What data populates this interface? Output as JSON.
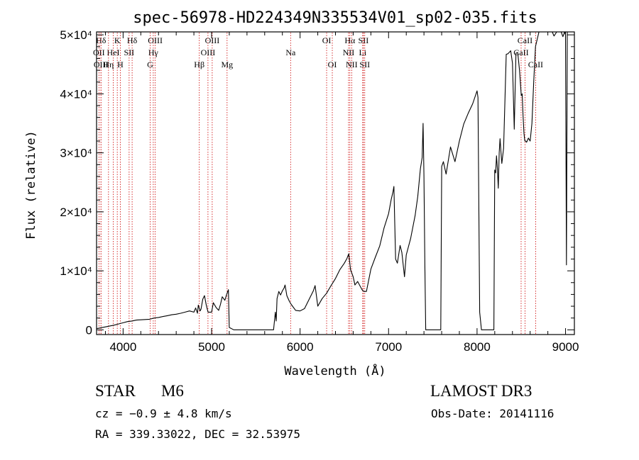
{
  "chart_data": {
    "type": "line",
    "title": "spec-56978-HD224349N335534V01_sp02-035.fits",
    "xlabel": "Wavelength (Å)",
    "ylabel": "Flux (relative)",
    "xlim": [
      3700,
      9100
    ],
    "ylim": [
      -800,
      50500
    ],
    "xticks": [
      {
        "value": 4000,
        "label": "4000"
      },
      {
        "value": 5000,
        "label": "5000"
      },
      {
        "value": 6000,
        "label": "6000"
      },
      {
        "value": 7000,
        "label": "7000"
      },
      {
        "value": 8000,
        "label": "8000"
      },
      {
        "value": 9000,
        "label": "9000"
      }
    ],
    "yticks": [
      {
        "value": 0,
        "label": "0"
      },
      {
        "value": 10000,
        "label": "1×10⁴"
      },
      {
        "value": 20000,
        "label": "2×10⁴"
      },
      {
        "value": 30000,
        "label": "3×10⁴"
      },
      {
        "value": 40000,
        "label": "4×10⁴"
      },
      {
        "value": 50000,
        "label": "5×10⁴"
      }
    ],
    "series": [
      {
        "name": "spectrum",
        "color": "#000000",
        "x": [
          3700,
          3750,
          3800,
          3850,
          3900,
          3950,
          4000,
          4050,
          4100,
          4150,
          4200,
          4250,
          4300,
          4350,
          4400,
          4450,
          4500,
          4550,
          4600,
          4650,
          4700,
          4750,
          4800,
          4820,
          4840,
          4850,
          4870,
          4880,
          4900,
          4920,
          4940,
          4960,
          5000,
          5020,
          5050,
          5080,
          5100,
          5120,
          5150,
          5170,
          5190,
          5200,
          5250,
          5300,
          5350,
          5400,
          5500,
          5600,
          5700,
          5720,
          5730,
          5740,
          5760,
          5780,
          5800,
          5820,
          5830,
          5850,
          5880,
          5900,
          5950,
          6000,
          6050,
          6100,
          6150,
          6170,
          6200,
          6250,
          6300,
          6350,
          6400,
          6450,
          6500,
          6530,
          6550,
          6570,
          6600,
          6620,
          6650,
          6700,
          6720,
          6750,
          6800,
          6850,
          6900,
          6950,
          7000,
          7030,
          7050,
          7060,
          7070,
          7080,
          7100,
          7130,
          7150,
          7180,
          7200,
          7250,
          7300,
          7330,
          7360,
          7380,
          7390,
          7400,
          7410,
          7420,
          7440,
          7500,
          7560,
          7590,
          7600,
          7620,
          7650,
          7700,
          7750,
          7800,
          7850,
          7900,
          7950,
          8000,
          8010,
          8030,
          8050,
          8100,
          8150,
          8180,
          8190,
          8200,
          8210,
          8220,
          8230,
          8240,
          8250,
          8260,
          8270,
          8280,
          8300,
          8330,
          8350,
          8380,
          8400,
          8420,
          8440,
          8460,
          8480,
          8500,
          8510,
          8520,
          8530,
          8540,
          8550,
          8560,
          8580,
          8600,
          8620,
          8640,
          8660,
          8700,
          8750,
          8800,
          8830,
          8850,
          8870,
          8900,
          8920,
          8950,
          8970,
          8990,
          9000,
          9010,
          9020
        ],
        "y": [
          200,
          350,
          500,
          650,
          800,
          1000,
          1200,
          1400,
          1500,
          1650,
          1700,
          1750,
          1800,
          2000,
          2100,
          2250,
          2400,
          2550,
          2650,
          2800,
          3000,
          3200,
          3000,
          3700,
          2800,
          4200,
          3200,
          3500,
          5200,
          5800,
          4200,
          3000,
          3000,
          4600,
          3800,
          3300,
          4300,
          5600,
          5000,
          6000,
          6800,
          400,
          0,
          0,
          0,
          0,
          0,
          0,
          0,
          3000,
          1500,
          5300,
          6500,
          5900,
          6600,
          7100,
          7600,
          5800,
          4800,
          4300,
          3300,
          3200,
          3600,
          5100,
          6600,
          7500,
          4000,
          5300,
          6200,
          7500,
          8700,
          10200,
          11300,
          12100,
          12900,
          10200,
          9000,
          7600,
          8200,
          6800,
          6500,
          6500,
          10300,
          12300,
          14200,
          17300,
          19700,
          22100,
          23400,
          24300,
          18000,
          12000,
          11300,
          14300,
          13100,
          9000,
          12700,
          15500,
          19400,
          22600,
          27300,
          29200,
          35000,
          26200,
          11000,
          0,
          0,
          0,
          0,
          0,
          27700,
          28500,
          26400,
          31000,
          28500,
          32000,
          34900,
          36700,
          38300,
          40500,
          39400,
          3000,
          0,
          0,
          0,
          0,
          0,
          27100,
          26600,
          29500,
          27300,
          24000,
          30000,
          32400,
          30100,
          28200,
          30800,
          46700,
          46800,
          47300,
          45200,
          34000,
          46900,
          47000,
          44000,
          39700,
          40000,
          36300,
          33300,
          32000,
          32000,
          31800,
          32500,
          32000,
          35000,
          42000,
          48000,
          50500,
          50500,
          50500,
          50500,
          50500,
          49800,
          50500,
          50500,
          50500,
          49700,
          50500,
          50000,
          11000,
          50500
        ]
      }
    ],
    "lines": [
      {
        "label": "Hδ",
        "wavelength": 3750,
        "row": 1
      },
      {
        "label": "K",
        "wavelength": 3934,
        "row": 1
      },
      {
        "label": "Hδ",
        "wavelength": 4102,
        "row": 1
      },
      {
        "label": "OIII",
        "wavelength": 4363,
        "row": 1
      },
      {
        "label": "OIII",
        "wavelength": 5007,
        "row": 1
      },
      {
        "label": "OI",
        "wavelength": 6300,
        "row": 1
      },
      {
        "label": "Hα",
        "wavelength": 6563,
        "row": 1
      },
      {
        "label": "SII",
        "wavelength": 6716,
        "row": 1
      },
      {
        "label": "CaII",
        "wavelength": 8542,
        "row": 1
      },
      {
        "label": "OII",
        "wavelength": 3727,
        "row": 2
      },
      {
        "label": "HeI",
        "wavelength": 3889,
        "row": 2
      },
      {
        "label": "SII",
        "wavelength": 4068,
        "row": 2
      },
      {
        "label": "Hγ",
        "wavelength": 4341,
        "row": 2
      },
      {
        "label": "OIII",
        "wavelength": 4959,
        "row": 2
      },
      {
        "label": "Na",
        "wavelength": 5893,
        "row": 2
      },
      {
        "label": "NII",
        "wavelength": 6548,
        "row": 2
      },
      {
        "label": "Li",
        "wavelength": 6708,
        "row": 2
      },
      {
        "label": "CaII",
        "wavelength": 8498,
        "row": 2
      },
      {
        "label": "OIII",
        "wavelength": 3750,
        "row": 3
      },
      {
        "label": "Hη",
        "wavelength": 3835,
        "row": 3
      },
      {
        "label": "H",
        "wavelength": 3968,
        "row": 3
      },
      {
        "label": "G",
        "wavelength": 4305,
        "row": 3
      },
      {
        "label": "Hβ",
        "wavelength": 4861,
        "row": 3
      },
      {
        "label": "Mg",
        "wavelength": 5175,
        "row": 3
      },
      {
        "label": "OI",
        "wavelength": 6364,
        "row": 3
      },
      {
        "label": "NII",
        "wavelength": 6583,
        "row": 3
      },
      {
        "label": "SII",
        "wavelength": 6731,
        "row": 3
      },
      {
        "label": "CaII",
        "wavelength": 8662,
        "row": 3
      }
    ],
    "line_color": "#cc0000",
    "grid": false
  },
  "info": {
    "object_class": "STAR",
    "subclass": "M6",
    "survey": "LAMOST DR3",
    "redshift": "cz = −0.9 ± 4.8 km/s",
    "obs_date": "Obs-Date: 20141116",
    "coords": "RA = 339.33022, DEC =  32.53975"
  }
}
